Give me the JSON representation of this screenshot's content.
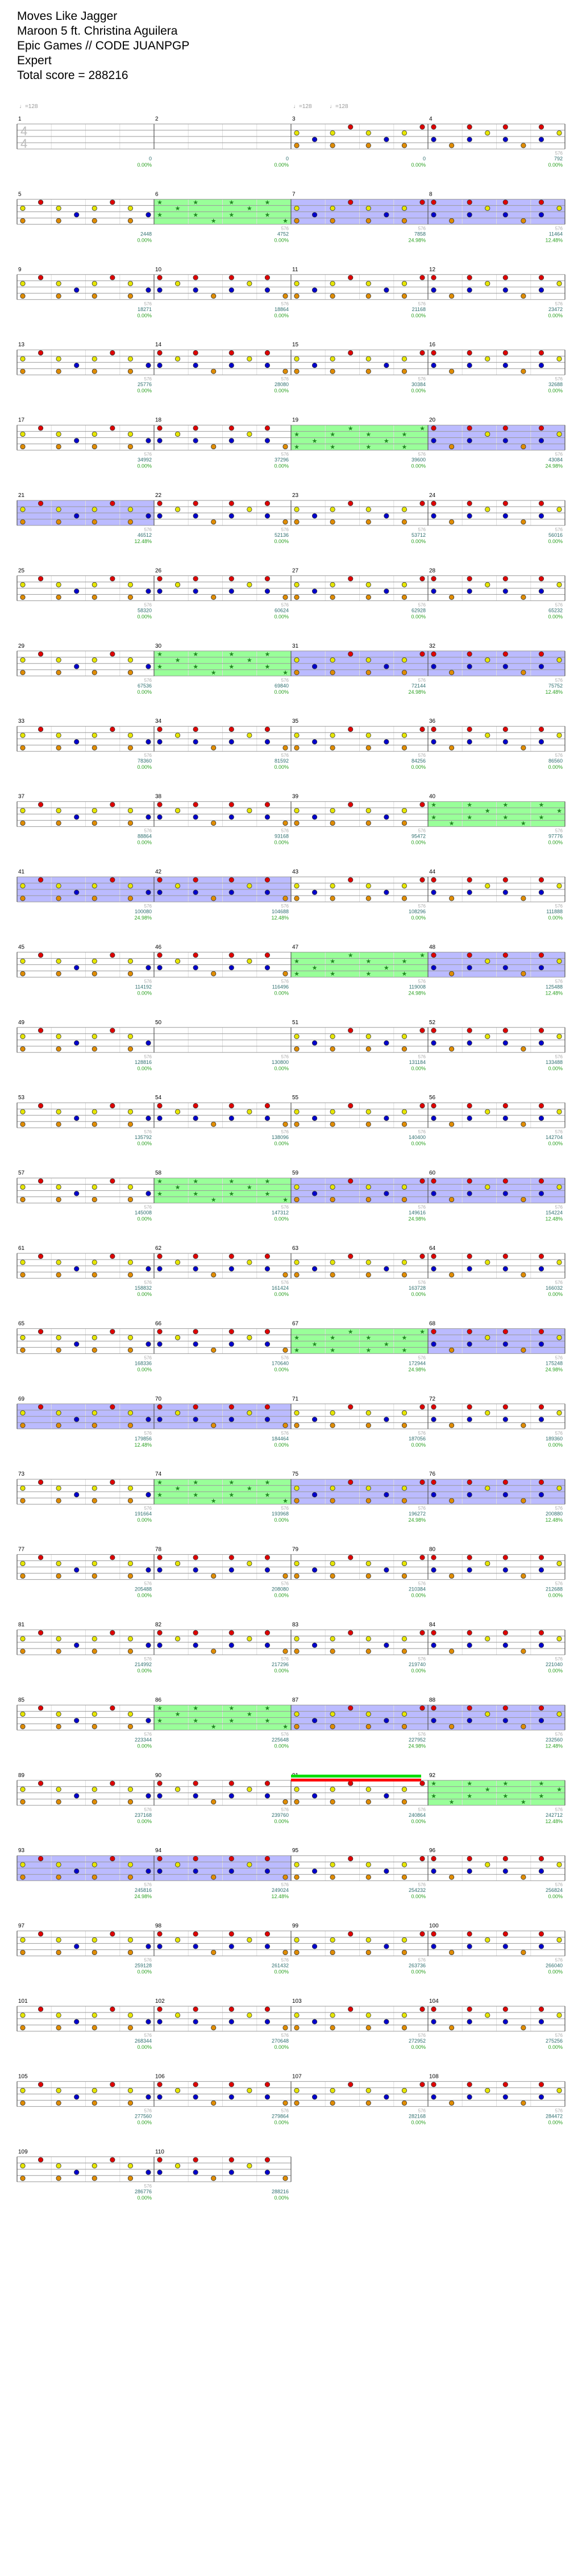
{
  "song": {
    "title": "Moves Like Jagger",
    "artist": "Maroon 5 ft. Christina Aguilera",
    "charter": "Epic Games // CODE JUANPGP",
    "difficulty": "Expert",
    "total_score_label": "Total score = 288216"
  },
  "tempo_markers": [
    {
      "measure": 1,
      "text": "♩=128"
    },
    {
      "measure": 3,
      "text": "♩=128"
    },
    {
      "measure": 3,
      "text": "♩=128",
      "offset": 1
    }
  ],
  "time_signature": {
    "top": "4",
    "bottom": "4"
  },
  "measures": [
    {
      "n": 1,
      "score": "0",
      "mult": "0.00%",
      "tag": ""
    },
    {
      "n": 2,
      "score": "0",
      "mult": "0.00%",
      "tag": ""
    },
    {
      "n": 3,
      "score": "0",
      "mult": "0.00%",
      "tag": ""
    },
    {
      "n": 4,
      "score": "792",
      "mult": "0.00%",
      "tag": "576"
    },
    {
      "n": 5,
      "score": "2448",
      "mult": "0.00%",
      "tag": ""
    },
    {
      "n": 6,
      "score": "4752",
      "mult": "0.00%",
      "tag": "576"
    },
    {
      "n": 7,
      "score": "7858",
      "mult": "24.98%",
      "tag": "576"
    },
    {
      "n": 8,
      "score": "11464",
      "mult": "12.48%",
      "tag": "576"
    },
    {
      "n": 9,
      "score": "18271",
      "mult": "0.00%",
      "tag": "576"
    },
    {
      "n": 10,
      "score": "18864",
      "mult": "0.00%",
      "tag": "576"
    },
    {
      "n": 11,
      "score": "21168",
      "mult": "0.00%",
      "tag": "576"
    },
    {
      "n": 12,
      "score": "23472",
      "mult": "0.00%",
      "tag": "576"
    },
    {
      "n": 13,
      "score": "25776",
      "mult": "0.00%",
      "tag": "576"
    },
    {
      "n": 14,
      "score": "28080",
      "mult": "0.00%",
      "tag": "576"
    },
    {
      "n": 15,
      "score": "30384",
      "mult": "0.00%",
      "tag": "576"
    },
    {
      "n": 16,
      "score": "32688",
      "mult": "0.00%",
      "tag": "576"
    },
    {
      "n": 17,
      "score": "34992",
      "mult": "0.00%",
      "tag": "576"
    },
    {
      "n": 18,
      "score": "37296",
      "mult": "0.00%",
      "tag": "576"
    },
    {
      "n": 19,
      "score": "39600",
      "mult": "0.00%",
      "tag": "576"
    },
    {
      "n": 20,
      "score": "43084",
      "mult": "24.98%",
      "tag": "576"
    },
    {
      "n": 21,
      "score": "46512",
      "mult": "12.48%",
      "tag": "576"
    },
    {
      "n": 22,
      "score": "52136",
      "mult": "0.00%",
      "tag": "576"
    },
    {
      "n": 23,
      "score": "53712",
      "mult": "0.00%",
      "tag": "576"
    },
    {
      "n": 24,
      "score": "56016",
      "mult": "0.00%",
      "tag": "576"
    },
    {
      "n": 25,
      "score": "58320",
      "mult": "0.00%",
      "tag": "576"
    },
    {
      "n": 26,
      "score": "60624",
      "mult": "0.00%",
      "tag": "576"
    },
    {
      "n": 27,
      "score": "62928",
      "mult": "0.00%",
      "tag": "576"
    },
    {
      "n": 28,
      "score": "65232",
      "mult": "0.00%",
      "tag": "576"
    },
    {
      "n": 29,
      "score": "67536",
      "mult": "0.00%",
      "tag": "576"
    },
    {
      "n": 30,
      "score": "69840",
      "mult": "0.00%",
      "tag": "576"
    },
    {
      "n": 31,
      "score": "72144",
      "mult": "24.98%",
      "tag": "576"
    },
    {
      "n": 32,
      "score": "75752",
      "mult": "12.48%",
      "tag": "576"
    },
    {
      "n": 33,
      "score": "78360",
      "mult": "0.00%",
      "tag": "576"
    },
    {
      "n": 34,
      "score": "81592",
      "mult": "0.00%",
      "tag": "576"
    },
    {
      "n": 35,
      "score": "84256",
      "mult": "0.00%",
      "tag": "576"
    },
    {
      "n": 36,
      "score": "86560",
      "mult": "0.00%",
      "tag": "576"
    },
    {
      "n": 37,
      "score": "88864",
      "mult": "0.00%",
      "tag": "576"
    },
    {
      "n": 38,
      "score": "93168",
      "mult": "0.00%",
      "tag": "576"
    },
    {
      "n": 39,
      "score": "95472",
      "mult": "0.00%",
      "tag": "576"
    },
    {
      "n": 40,
      "score": "97776",
      "mult": "0.00%",
      "tag": "576"
    },
    {
      "n": 41,
      "score": "100080",
      "mult": "24.98%",
      "tag": "576"
    },
    {
      "n": 42,
      "score": "104688",
      "mult": "12.48%",
      "tag": "576"
    },
    {
      "n": 43,
      "score": "108296",
      "mult": "0.00%",
      "tag": "576"
    },
    {
      "n": 44,
      "score": "111888",
      "mult": "0.00%",
      "tag": "576"
    },
    {
      "n": 45,
      "score": "114192",
      "mult": "0.00%",
      "tag": "576"
    },
    {
      "n": 46,
      "score": "116496",
      "mult": "0.00%",
      "tag": "576"
    },
    {
      "n": 47,
      "score": "119008",
      "mult": "24.98%",
      "tag": "576"
    },
    {
      "n": 48,
      "score": "125488",
      "mult": "12.48%",
      "tag": "576"
    },
    {
      "n": 49,
      "score": "128816",
      "mult": "0.00%",
      "tag": "576"
    },
    {
      "n": 50,
      "score": "130800",
      "mult": "0.00%",
      "tag": "576"
    },
    {
      "n": 51,
      "score": "131184",
      "mult": "0.00%",
      "tag": "576"
    },
    {
      "n": 52,
      "score": "133488",
      "mult": "0.00%",
      "tag": "576"
    },
    {
      "n": 53,
      "score": "135792",
      "mult": "0.00%",
      "tag": "576"
    },
    {
      "n": 54,
      "score": "138096",
      "mult": "0.00%",
      "tag": "576"
    },
    {
      "n": 55,
      "score": "140400",
      "mult": "0.00%",
      "tag": "576"
    },
    {
      "n": 56,
      "score": "142704",
      "mult": "0.00%",
      "tag": "576"
    },
    {
      "n": 57,
      "score": "145008",
      "mult": "0.00%",
      "tag": "576"
    },
    {
      "n": 58,
      "score": "147312",
      "mult": "0.00%",
      "tag": "576"
    },
    {
      "n": 59,
      "score": "149616",
      "mult": "24.98%",
      "tag": "576"
    },
    {
      "n": 60,
      "score": "154224",
      "mult": "12.48%",
      "tag": "576"
    },
    {
      "n": 61,
      "score": "158832",
      "mult": "0.00%",
      "tag": "576"
    },
    {
      "n": 62,
      "score": "161424",
      "mult": "0.00%",
      "tag": "576"
    },
    {
      "n": 63,
      "score": "163728",
      "mult": "0.00%",
      "tag": "576"
    },
    {
      "n": 64,
      "score": "166032",
      "mult": "0.00%",
      "tag": "576"
    },
    {
      "n": 65,
      "score": "168336",
      "mult": "0.00%",
      "tag": "576"
    },
    {
      "n": 66,
      "score": "170640",
      "mult": "0.00%",
      "tag": "576"
    },
    {
      "n": 67,
      "score": "172944",
      "mult": "24.98%",
      "tag": "576"
    },
    {
      "n": 68,
      "score": "175248",
      "mult": "24.98%",
      "tag": "576"
    },
    {
      "n": 69,
      "score": "179856",
      "mult": "12.48%",
      "tag": "576"
    },
    {
      "n": 70,
      "score": "184464",
      "mult": "0.00%",
      "tag": "576"
    },
    {
      "n": 71,
      "score": "187056",
      "mult": "0.00%",
      "tag": "576"
    },
    {
      "n": 72,
      "score": "189360",
      "mult": "0.00%",
      "tag": "576"
    },
    {
      "n": 73,
      "score": "191664",
      "mult": "0.00%",
      "tag": "576"
    },
    {
      "n": 74,
      "score": "193968",
      "mult": "0.00%",
      "tag": "576"
    },
    {
      "n": 75,
      "score": "196272",
      "mult": "24.98%",
      "tag": "576"
    },
    {
      "n": 76,
      "score": "200880",
      "mult": "12.48%",
      "tag": "576"
    },
    {
      "n": 77,
      "score": "205488",
      "mult": "0.00%",
      "tag": "576"
    },
    {
      "n": 78,
      "score": "208080",
      "mult": "0.00%",
      "tag": "576"
    },
    {
      "n": 79,
      "score": "210384",
      "mult": "0.00%",
      "tag": "576"
    },
    {
      "n": 80,
      "score": "212688",
      "mult": "0.00%",
      "tag": "576"
    },
    {
      "n": 81,
      "score": "214992",
      "mult": "0.00%",
      "tag": "576"
    },
    {
      "n": 82,
      "score": "217296",
      "mult": "0.00%",
      "tag": "576"
    },
    {
      "n": 83,
      "score": "219740",
      "mult": "0.00%",
      "tag": "576"
    },
    {
      "n": 84,
      "score": "221040",
      "mult": "0.00%",
      "tag": "576"
    },
    {
      "n": 85,
      "score": "223344",
      "mult": "0.00%",
      "tag": "576"
    },
    {
      "n": 86,
      "score": "225648",
      "mult": "0.00%",
      "tag": "576"
    },
    {
      "n": 87,
      "score": "227952",
      "mult": "24.98%",
      "tag": "576"
    },
    {
      "n": 88,
      "score": "232560",
      "mult": "12.48%",
      "tag": "576"
    },
    {
      "n": 89,
      "score": "237168",
      "mult": "0.00%",
      "tag": "576"
    },
    {
      "n": 90,
      "score": "239760",
      "mult": "0.00%",
      "tag": "576"
    },
    {
      "n": 91,
      "score": "240864",
      "mult": "0.00%",
      "tag": "576"
    },
    {
      "n": 92,
      "score": "242712",
      "mult": "12.48%",
      "tag": "576"
    },
    {
      "n": 93,
      "score": "245816",
      "mult": "24.98%",
      "tag": "576"
    },
    {
      "n": 94,
      "score": "249024",
      "mult": "12.48%",
      "tag": "576"
    },
    {
      "n": 95,
      "score": "254232",
      "mult": "0.00%",
      "tag": "576"
    },
    {
      "n": 96,
      "score": "256824",
      "mult": "0.00%",
      "tag": "576"
    },
    {
      "n": 97,
      "score": "259128",
      "mult": "0.00%",
      "tag": "576"
    },
    {
      "n": 98,
      "score": "261432",
      "mult": "0.00%",
      "tag": "576"
    },
    {
      "n": 99,
      "score": "263736",
      "mult": "0.00%",
      "tag": "576"
    },
    {
      "n": 100,
      "score": "266040",
      "mult": "0.00%",
      "tag": "576"
    },
    {
      "n": 101,
      "score": "268344",
      "mult": "0.00%",
      "tag": "576"
    },
    {
      "n": 102,
      "score": "270648",
      "mult": "0.00%",
      "tag": "576"
    },
    {
      "n": 103,
      "score": "272952",
      "mult": "0.00%",
      "tag": "576"
    },
    {
      "n": 104,
      "score": "275256",
      "mult": "0.00%",
      "tag": "576"
    },
    {
      "n": 105,
      "score": "277560",
      "mult": "0.00%",
      "tag": "576"
    },
    {
      "n": 106,
      "score": "279864",
      "mult": "0.00%",
      "tag": "576"
    },
    {
      "n": 107,
      "score": "282168",
      "mult": "0.00%",
      "tag": "576"
    },
    {
      "n": 108,
      "score": "284472",
      "mult": "0.00%",
      "tag": "576"
    },
    {
      "n": 109,
      "score": "286776",
      "mult": "0.00%",
      "tag": "576"
    },
    {
      "n": 110,
      "score": "288216",
      "mult": "0.00%",
      "tag": ""
    }
  ],
  "colors": {
    "background": "#ffffff",
    "staff_line": "#9a9a9a",
    "barline": "#555555",
    "star_power": "#99ff99",
    "activation": "#aaaaff",
    "score_text": "#2f6f6f",
    "pct_text": "#2aa020",
    "tag_text": "#aaaaaa",
    "lane_red": "#e00000",
    "lane_yellow": "#e6e600",
    "lane_blue": "#0000cc",
    "lane_orange": "#e08c00",
    "solo_green": "#00dd00",
    "solo_red": "#ff0000"
  }
}
